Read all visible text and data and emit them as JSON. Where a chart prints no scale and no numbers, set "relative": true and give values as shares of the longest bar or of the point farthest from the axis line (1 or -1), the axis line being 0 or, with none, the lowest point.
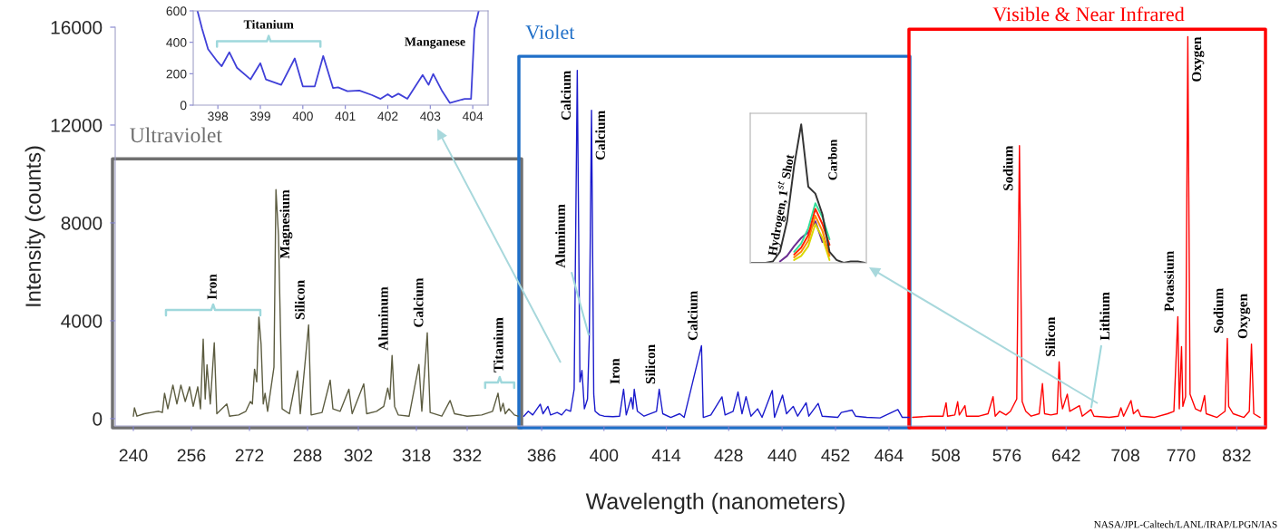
{
  "chart_data": [
    {
      "type": "line",
      "title": "Ultraviolet",
      "ylabel": "Intensity (counts)",
      "xlim": [
        235,
        347
      ],
      "ylim": [
        -300,
        16000
      ],
      "xticks": [
        240,
        256,
        272,
        288,
        302,
        318,
        332
      ],
      "yticks": [
        0,
        4000,
        8000,
        12000,
        16000
      ],
      "series": [
        {
          "color": "#5c5c40",
          "x": [
            240,
            240.3,
            241,
            243,
            245,
            247,
            248,
            248.6,
            249.5,
            250.9,
            252,
            253.1,
            254.3,
            255.5,
            256.5,
            257.75,
            258.5,
            259.25,
            259.8,
            260.3,
            261.2,
            262.3,
            263,
            265.75,
            266.5,
            269,
            271,
            272.25,
            272.8,
            273.4,
            274,
            274.6,
            275.2,
            275.8,
            276.3,
            277,
            278.75,
            279.3,
            280,
            281,
            283,
            285.25,
            286,
            288.3,
            289,
            292,
            294.25,
            295,
            297,
            299.4,
            300.3,
            303.5,
            304.3,
            307,
            309,
            310.1,
            310.7,
            311.3,
            312,
            313,
            316,
            318.7,
            319.5,
            321,
            321.8,
            325,
            327.3,
            328.5,
            332,
            336,
            339,
            340.5,
            341.2,
            341.9,
            342.5,
            343.5,
            345,
            346
          ],
          "values": [
            100,
            440,
            100,
            200,
            250,
            300,
            250,
            1040,
            400,
            1370,
            600,
            1370,
            700,
            1300,
            500,
            1300,
            400,
            3250,
            800,
            2200,
            600,
            3100,
            200,
            600,
            100,
            150,
            300,
            700,
            600,
            2020,
            1500,
            4150,
            3050,
            600,
            1040,
            300,
            2100,
            9360,
            7480,
            400,
            200,
            1950,
            200,
            3830,
            150,
            250,
            1570,
            400,
            300,
            1200,
            200,
            1420,
            200,
            300,
            500,
            1250,
            800,
            2580,
            500,
            150,
            100,
            2210,
            300,
            3510,
            250,
            100,
            740,
            200,
            100,
            150,
            300,
            1040,
            300,
            630,
            200,
            400,
            150,
            100
          ]
        }
      ],
      "annotations": [
        "Iron",
        {
          "text": "Magnesium",
          "x": 279.3,
          "y": 9360
        },
        {
          "text": "Silicon",
          "x": 288.3,
          "y": 3830
        },
        {
          "text": "Aluminum",
          "x": 311.3,
          "y": 2580
        },
        {
          "text": "Calcium",
          "x": 321,
          "y": 3510
        },
        "Titanium"
      ]
    },
    {
      "type": "line",
      "title": "Violet",
      "xlabel": "Wavelength (nanometers)",
      "xlim": [
        381.5,
        468.7
      ],
      "ylim": [
        -300,
        16000
      ],
      "xticks": [
        386,
        400,
        414,
        428,
        440,
        452,
        464
      ],
      "tick_labels": "x",
      "series": [
        {
          "color": "#1a1acc",
          "x": [
            382,
            383,
            384,
            385.7,
            386.3,
            387.4,
            388,
            389.5,
            390.5,
            391.5,
            392.5,
            393.3,
            394.0,
            394.6,
            395.05,
            395.6,
            396.3,
            396.7,
            397.2,
            397.7,
            398,
            399,
            400,
            402,
            403.5,
            404.4,
            405,
            406.1,
            406.5,
            406.8,
            407.5,
            409,
            411.8,
            412.4,
            413.2,
            415,
            417,
            418,
            421.9,
            422.3,
            424,
            426.5,
            427.2,
            429,
            430.1,
            431,
            431.9,
            433,
            434.5,
            435.5,
            437.8,
            438.3,
            440.1,
            441,
            442.5,
            443.5,
            445.4,
            446,
            448.1,
            449,
            452.5,
            453.3,
            455.7,
            456.5,
            459,
            462,
            466.0,
            467,
            468.5
          ],
          "values": [
            100,
            300,
            150,
            590,
            200,
            500,
            150,
            250,
            150,
            370,
            300,
            1200,
            14230,
            1500,
            1970,
            400,
            800,
            3330,
            12600,
            1000,
            300,
            150,
            100,
            80,
            100,
            1200,
            150,
            860,
            400,
            1200,
            300,
            100,
            300,
            1200,
            200,
            50,
            200,
            50,
            2980,
            50,
            150,
            890,
            150,
            300,
            1090,
            200,
            900,
            100,
            400,
            50,
            1150,
            50,
            960,
            200,
            500,
            100,
            650,
            100,
            620,
            100,
            50,
            250,
            350,
            100,
            50,
            30,
            370,
            50,
            50
          ]
        }
      ],
      "annotations": [
        {
          "text": "Calcium",
          "x": 394.0,
          "y": 14230
        },
        {
          "text": "Calcium",
          "x": 397.2,
          "y": 12600
        },
        {
          "text": "Aluminum",
          "x": 396.7,
          "y": 3330
        },
        {
          "text": "Iron",
          "x": 404.4,
          "y": 1200
        },
        {
          "text": "Silicon",
          "x": 412.4,
          "y": 1200
        },
        {
          "text": "Calcium",
          "x": 421.9,
          "y": 2980
        }
      ]
    },
    {
      "type": "line",
      "title": "Visible & Near Infrared",
      "xlim": [
        470,
        864
      ],
      "ylim": [
        -300,
        16000
      ],
      "xticks": [
        508,
        576,
        642,
        708,
        770,
        832
      ],
      "tick_labels": "x",
      "series": [
        {
          "color": "#ff0000",
          "x": [
            471,
            490,
            505,
            508.3,
            510,
            518,
            521.2,
            523,
            529.3,
            531,
            545,
            555,
            560.6,
            563,
            568,
            575,
            580,
            587,
            590,
            593,
            597,
            603,
            612,
            615.6,
            618,
            625,
            632,
            634.2,
            636,
            638,
            643.3,
            646,
            656.8,
            660,
            669.6,
            673,
            690,
            700,
            703,
            706,
            714.2,
            717,
            721.9,
            725,
            740,
            755,
            762,
            766.4,
            768,
            770.5,
            772,
            775,
            777.5,
            780,
            786,
            792,
            796.2,
            798,
            810,
            819,
            821.5,
            823,
            828,
            840,
            846,
            848.4,
            851,
            858
          ],
          "values": [
            50,
            100,
            100,
            650,
            100,
            150,
            690,
            150,
            530,
            100,
            100,
            200,
            900,
            100,
            300,
            150,
            300,
            800,
            11160,
            700,
            300,
            100,
            200,
            1430,
            200,
            150,
            200,
            2320,
            900,
            400,
            1000,
            300,
            530,
            100,
            370,
            100,
            50,
            100,
            440,
            100,
            740,
            200,
            370,
            100,
            50,
            200,
            300,
            4170,
            400,
            2940,
            500,
            900,
            15610,
            1000,
            400,
            300,
            940,
            200,
            50,
            300,
            3280,
            500,
            200,
            50,
            300,
            3050,
            200,
            50
          ]
        }
      ],
      "annotations": [
        {
          "text": "Sodium",
          "x": 590,
          "y": 11160
        },
        {
          "text": "Silicon",
          "x": 634.2,
          "y": 2320
        },
        {
          "text": "Lithium",
          "x": 669.6,
          "y": 370
        },
        {
          "text": "Potassium",
          "x": 766.4,
          "y": 4170
        },
        {
          "text": "Oxygen",
          "x": 777.5,
          "y": 15610
        },
        {
          "text": "Sodium",
          "x": 821.5,
          "y": 3280
        },
        {
          "text": "Oxygen",
          "x": 848.4,
          "y": 3050
        },
        "NASA/JPL-Caltech/LANL/IRAP/LPGN/IAS"
      ]
    },
    {
      "type": "line",
      "xlim": [
        397.42,
        404.36
      ],
      "ylim": [
        0,
        600
      ],
      "xticks": [
        398,
        399,
        400,
        401,
        402,
        403,
        404
      ],
      "yticks": [
        0,
        200,
        400,
        600
      ],
      "series": [
        {
          "color": "#4040d8",
          "x": [
            397.52,
            397.63,
            397.77,
            397.99,
            398.09,
            398.27,
            398.45,
            398.77,
            399.0,
            399.13,
            399.49,
            399.81,
            400.0,
            400.28,
            400.48,
            400.71,
            400.83,
            401.05,
            401.33,
            401.62,
            401.83,
            402.0,
            402.1,
            402.25,
            402.46,
            402.82,
            402.96,
            403.07,
            403.28,
            403.46,
            403.81,
            403.96,
            404.04,
            404.14
          ],
          "values": [
            600,
            485,
            356,
            277,
            248,
            337,
            238,
            164,
            267,
            164,
            129,
            297,
            119,
            119,
            313,
            109,
            113,
            89,
            93,
            65,
            40,
            69,
            50,
            73,
            40,
            192,
            129,
            198,
            89,
            14,
            40,
            40,
            485,
            600
          ]
        }
      ],
      "annotations": [
        "Titanium",
        "Manganese"
      ]
    },
    {
      "type": "line",
      "relative": true,
      "tick_labels": false,
      "categories": [
        null,
        null,
        null,
        null,
        null,
        null,
        null,
        null,
        null,
        null,
        null,
        null,
        null,
        null,
        null,
        null,
        null
      ],
      "series": [
        {
          "color": "#6a2c91",
          "values": [
            null,
            null,
            null,
            null,
            0.01,
            0.05,
            0.12,
            0.18,
            0.22,
            0.3,
            0.15,
            null,
            null,
            null,
            null,
            null,
            null
          ]
        },
        {
          "color": "#d8d800",
          "values": [
            null,
            null,
            null,
            null,
            null,
            null,
            0.02,
            0.05,
            0.12,
            0.28,
            0.18,
            0.02,
            null,
            null,
            null,
            null,
            null
          ]
        },
        {
          "color": "#33dd99",
          "values": [
            null,
            null,
            null,
            null,
            null,
            null,
            0.08,
            0.14,
            0.25,
            0.43,
            0.33,
            0.17,
            null,
            null,
            null,
            null,
            null
          ]
        },
        {
          "color": "#ff8800",
          "values": [
            null,
            null,
            null,
            null,
            null,
            null,
            0.04,
            0.08,
            0.16,
            0.34,
            0.23,
            0.05,
            null,
            null,
            null,
            null,
            null
          ]
        },
        {
          "color": "#ff2200",
          "values": [
            null,
            null,
            null,
            null,
            null,
            null,
            0.06,
            0.11,
            0.2,
            0.39,
            0.28,
            0.13,
            null,
            null,
            null,
            null,
            null
          ]
        },
        {
          "color": "#333333",
          "values": [
            0,
            0,
            0,
            0.01,
            0.08,
            0.3,
            0.7,
            1.0,
            0.55,
            0.5,
            0.35,
            0.08,
            0.02,
            0,
            0.01,
            0.01,
            0
          ]
        }
      ],
      "annotations": [
        "Hydrogen, 1$^{st}$ Shot",
        "Carbon"
      ]
    }
  ]
}
